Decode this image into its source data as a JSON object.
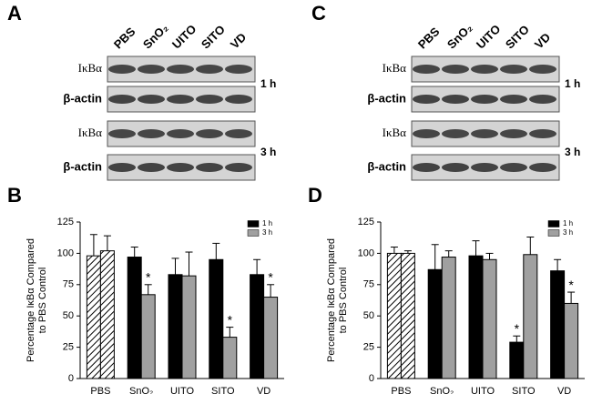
{
  "blots": [
    {
      "label": "A",
      "lanes": [
        "PBS",
        "SnO₂",
        "UITO",
        "SITO",
        "VD"
      ],
      "rows": [
        "IκBα",
        "β-actin",
        "IκBα",
        "β-actin"
      ],
      "times": [
        "1 h",
        "3 h"
      ]
    },
    {
      "label": "C",
      "lanes": [
        "PBS",
        "SnO₂",
        "UITO",
        "SITO",
        "VD"
      ],
      "rows": [
        "IκBα",
        "β-actin",
        "IκBα",
        "β-actin"
      ],
      "times": [
        "1 h",
        "3 h"
      ]
    }
  ],
  "chart_data": [
    {
      "type": "bar",
      "panel": "B",
      "ylabel": [
        "Percentage IκBα Compared",
        "to PBS Control"
      ],
      "categories": [
        "PBS",
        "SnO₂",
        "UITO",
        "SITO",
        "VD"
      ],
      "hatched_index": 0,
      "series": [
        {
          "name": "1 h",
          "color": "#000000",
          "values": [
            98,
            97,
            83,
            95,
            83
          ],
          "errors": [
            17,
            8,
            13,
            13,
            12
          ]
        },
        {
          "name": "3 h",
          "color": "#a0a0a0",
          "values": [
            102,
            67,
            82,
            33,
            65
          ],
          "errors": [
            12,
            8,
            19,
            8,
            10
          ]
        }
      ],
      "significant": [
        {
          "series": 1,
          "index": 1,
          "label": "*"
        },
        {
          "series": 1,
          "index": 3,
          "label": "*"
        },
        {
          "series": 1,
          "index": 4,
          "label": "*"
        }
      ],
      "ylim": [
        0,
        125
      ],
      "yticks": [
        0,
        25,
        50,
        75,
        100,
        125
      ],
      "legend": "upper right"
    },
    {
      "type": "bar",
      "panel": "D",
      "ylabel": [
        "Percentage IκBα Compared",
        "to PBS Control"
      ],
      "categories": [
        "PBS",
        "SnO₂",
        "UITO",
        "SITO",
        "VD"
      ],
      "hatched_index": 0,
      "series": [
        {
          "name": "1 h",
          "color": "#000000",
          "values": [
            100,
            87,
            98,
            29,
            86
          ],
          "errors": [
            5,
            20,
            12,
            5,
            9
          ]
        },
        {
          "name": "3 h",
          "color": "#a0a0a0",
          "values": [
            100,
            97,
            95,
            99,
            60
          ],
          "errors": [
            2,
            5,
            5,
            14,
            9
          ]
        }
      ],
      "significant": [
        {
          "series": 0,
          "index": 3,
          "label": "*"
        },
        {
          "series": 1,
          "index": 4,
          "label": "*"
        }
      ],
      "ylim": [
        0,
        125
      ],
      "yticks": [
        0,
        25,
        50,
        75,
        100,
        125
      ],
      "legend": "upper right"
    }
  ]
}
